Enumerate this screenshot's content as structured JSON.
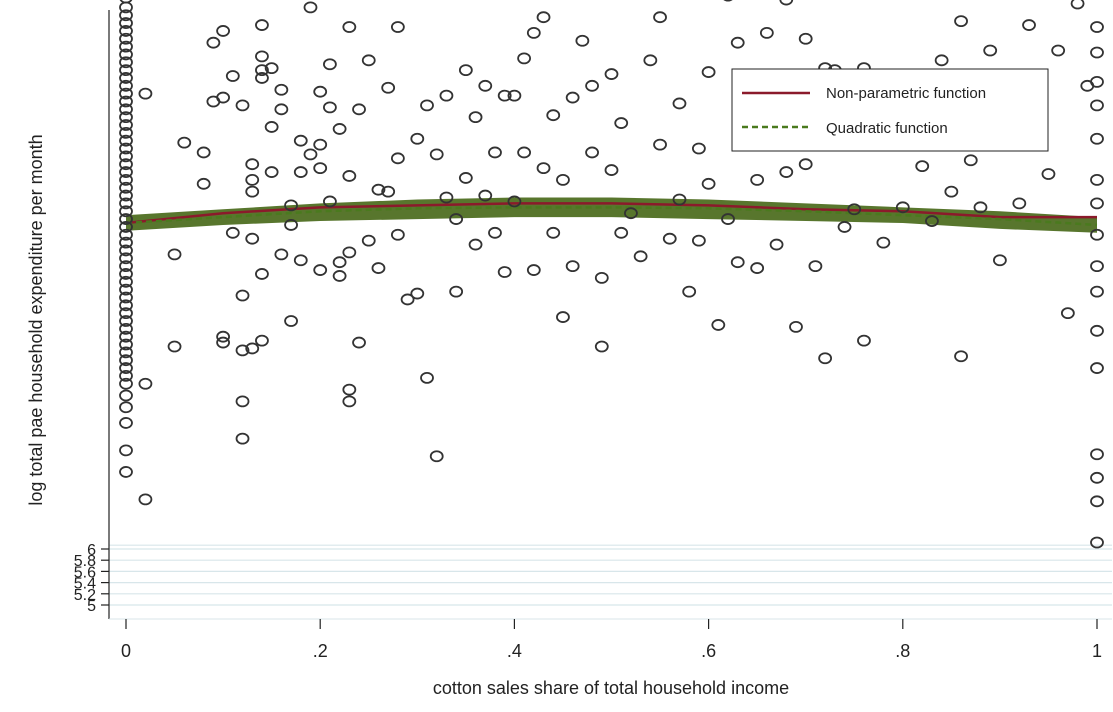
{
  "chart_data": {
    "type": "scatter",
    "xlabel": "cotton sales share of total household income",
    "ylabel": "log total pae household expenditure per month",
    "xlim": [
      0,
      1
    ],
    "x_ticks": [
      {
        "value": 0,
        "label": "0"
      },
      {
        "value": 0.2,
        "label": ".2"
      },
      {
        "value": 0.4,
        "label": ".4"
      },
      {
        "value": 0.6,
        "label": ".6"
      },
      {
        "value": 0.8,
        "label": ".8"
      },
      {
        "value": 1,
        "label": "1"
      }
    ],
    "y_ticks": [
      {
        "value": 5,
        "label": "5"
      },
      {
        "value": 5.2,
        "label": "5.2"
      },
      {
        "value": 5.4,
        "label": "5.4"
      },
      {
        "value": 5.6,
        "label": "5.6"
      },
      {
        "value": 5.8,
        "label": "5.8"
      },
      {
        "value": 6,
        "label": "6"
      }
    ],
    "grid": true,
    "legend_position": "top-right",
    "colors": {
      "points": "#333333",
      "nonparametric": "#8b1a2b",
      "quadratic": "#4a7a1e",
      "band": "#4f6f22",
      "grid": "#d8e6ea"
    },
    "series": [
      {
        "name": "Non-parametric function",
        "style": "line",
        "x": [
          0,
          0.1,
          0.2,
          0.3,
          0.4,
          0.5,
          0.6,
          0.7,
          0.8,
          0.9,
          1.0
        ],
        "y": [
          7.6,
          7.65,
          7.68,
          7.69,
          7.7,
          7.7,
          7.69,
          7.67,
          7.66,
          7.63,
          7.63
        ]
      },
      {
        "name": "Quadratic function",
        "style": "dashed",
        "x": [
          0,
          0.1,
          0.2,
          0.3,
          0.4,
          0.5,
          0.6,
          0.7,
          0.8,
          0.9,
          1.0
        ],
        "y": [
          7.6,
          7.63,
          7.66,
          7.675,
          7.68,
          7.68,
          7.675,
          7.66,
          7.64,
          7.62,
          7.59
        ]
      }
    ],
    "band": {
      "x": [
        0,
        0.1,
        0.2,
        0.3,
        0.4,
        0.5,
        0.6,
        0.7,
        0.8,
        0.9,
        1.0
      ],
      "lower": [
        7.56,
        7.59,
        7.61,
        7.62,
        7.63,
        7.63,
        7.62,
        7.61,
        7.6,
        7.57,
        7.55
      ],
      "upper": [
        7.64,
        7.67,
        7.7,
        7.72,
        7.73,
        7.73,
        7.72,
        7.7,
        7.68,
        7.66,
        7.63
      ]
    },
    "scatter_points": [
      [
        0,
        9.0
      ],
      [
        0,
        8.92
      ],
      [
        0,
        8.8
      ],
      [
        0,
        8.75
      ],
      [
        0,
        8.7
      ],
      [
        0,
        8.66
      ],
      [
        0,
        8.62
      ],
      [
        0,
        8.58
      ],
      [
        0,
        8.54
      ],
      [
        0,
        8.5
      ],
      [
        0,
        8.46
      ],
      [
        0,
        8.42
      ],
      [
        0,
        8.38
      ],
      [
        0,
        8.34
      ],
      [
        0,
        8.3
      ],
      [
        0,
        8.26
      ],
      [
        0,
        8.22
      ],
      [
        0,
        8.18
      ],
      [
        0,
        8.14
      ],
      [
        0,
        8.1
      ],
      [
        0,
        8.06
      ],
      [
        0,
        8.02
      ],
      [
        0,
        7.98
      ],
      [
        0,
        7.94
      ],
      [
        0,
        7.9
      ],
      [
        0,
        7.86
      ],
      [
        0,
        7.82
      ],
      [
        0,
        7.78
      ],
      [
        0,
        7.74
      ],
      [
        0,
        7.7
      ],
      [
        0,
        7.66
      ],
      [
        0,
        7.62
      ],
      [
        0,
        7.58
      ],
      [
        0,
        7.54
      ],
      [
        0,
        7.5
      ],
      [
        0,
        7.46
      ],
      [
        0,
        7.42
      ],
      [
        0,
        7.38
      ],
      [
        0,
        7.34
      ],
      [
        0,
        7.3
      ],
      [
        0,
        7.26
      ],
      [
        0,
        7.22
      ],
      [
        0,
        7.18
      ],
      [
        0,
        7.14
      ],
      [
        0,
        7.1
      ],
      [
        0,
        7.06
      ],
      [
        0,
        7.02
      ],
      [
        0,
        6.98
      ],
      [
        0,
        6.94
      ],
      [
        0,
        6.9
      ],
      [
        0,
        6.86
      ],
      [
        0,
        6.82
      ],
      [
        0,
        6.78
      ],
      [
        0,
        6.72
      ],
      [
        0,
        6.66
      ],
      [
        0,
        6.58
      ],
      [
        0,
        6.44
      ],
      [
        0,
        6.33
      ],
      [
        0.02,
        6.19
      ],
      [
        0.02,
        6.78
      ],
      [
        0.02,
        8.26
      ],
      [
        0.05,
        7.44
      ],
      [
        0.05,
        6.97
      ],
      [
        0.06,
        9.06
      ],
      [
        0.06,
        8.01
      ],
      [
        0.08,
        7.8
      ],
      [
        0.08,
        7.96
      ],
      [
        0.09,
        8.52
      ],
      [
        0.09,
        8.22
      ],
      [
        0.1,
        9.4
      ],
      [
        0.1,
        9.33
      ],
      [
        0.1,
        8.91
      ],
      [
        0.1,
        8.24
      ],
      [
        0.1,
        6.99
      ],
      [
        0.1,
        7.02
      ],
      [
        0.1,
        8.58
      ],
      [
        0.11,
        8.35
      ],
      [
        0.11,
        7.55
      ],
      [
        0.12,
        7.23
      ],
      [
        0.12,
        6.95
      ],
      [
        0.12,
        6.5
      ],
      [
        0.12,
        6.69
      ],
      [
        0.12,
        8.2
      ],
      [
        0.13,
        7.9
      ],
      [
        0.13,
        7.82
      ],
      [
        0.13,
        7.76
      ],
      [
        0.13,
        6.96
      ],
      [
        0.13,
        7.52
      ],
      [
        0.14,
        8.61
      ],
      [
        0.14,
        8.38
      ],
      [
        0.14,
        8.45
      ],
      [
        0.14,
        8.34
      ],
      [
        0.14,
        7.34
      ],
      [
        0.14,
        7.0
      ],
      [
        0.15,
        8.96
      ],
      [
        0.15,
        8.39
      ],
      [
        0.15,
        7.86
      ],
      [
        0.15,
        8.09
      ],
      [
        0.16,
        7.44
      ],
      [
        0.16,
        8.18
      ],
      [
        0.16,
        8.28
      ],
      [
        0.17,
        7.59
      ],
      [
        0.17,
        9.1
      ],
      [
        0.17,
        7.69
      ],
      [
        0.17,
        7.1
      ],
      [
        0.18,
        7.41
      ],
      [
        0.18,
        7.86
      ],
      [
        0.18,
        8.02
      ],
      [
        0.19,
        8.7
      ],
      [
        0.19,
        7.95
      ],
      [
        0.19,
        9.02
      ],
      [
        0.2,
        9.43
      ],
      [
        0.2,
        8.27
      ],
      [
        0.2,
        8.0
      ],
      [
        0.2,
        7.36
      ],
      [
        0.2,
        7.88
      ],
      [
        0.21,
        8.19
      ],
      [
        0.21,
        8.41
      ],
      [
        0.21,
        7.71
      ],
      [
        0.22,
        7.33
      ],
      [
        0.22,
        7.4
      ],
      [
        0.22,
        8.08
      ],
      [
        0.22,
        8.81
      ],
      [
        0.23,
        8.6
      ],
      [
        0.23,
        9.15
      ],
      [
        0.23,
        6.75
      ],
      [
        0.23,
        6.69
      ],
      [
        0.23,
        7.84
      ],
      [
        0.23,
        7.45
      ],
      [
        0.24,
        8.18
      ],
      [
        0.24,
        6.99
      ],
      [
        0.25,
        7.51
      ],
      [
        0.25,
        8.43
      ],
      [
        0.26,
        7.77
      ],
      [
        0.26,
        7.37
      ],
      [
        0.27,
        7.76
      ],
      [
        0.27,
        8.29
      ],
      [
        0.28,
        8.6
      ],
      [
        0.28,
        7.93
      ],
      [
        0.28,
        7.54
      ],
      [
        0.29,
        7.21
      ],
      [
        0.3,
        7.24
      ],
      [
        0.3,
        8.03
      ],
      [
        0.31,
        6.81
      ],
      [
        0.31,
        8.2
      ],
      [
        0.32,
        7.95
      ],
      [
        0.32,
        6.41
      ],
      [
        0.33,
        8.25
      ],
      [
        0.33,
        7.73
      ],
      [
        0.34,
        7.25
      ],
      [
        0.34,
        7.62
      ],
      [
        0.35,
        8.38
      ],
      [
        0.35,
        7.83
      ],
      [
        0.36,
        8.14
      ],
      [
        0.36,
        7.49
      ],
      [
        0.37,
        8.3
      ],
      [
        0.37,
        7.74
      ],
      [
        0.38,
        7.96
      ],
      [
        0.38,
        7.55
      ],
      [
        0.39,
        8.25
      ],
      [
        0.39,
        7.35
      ],
      [
        0.4,
        8.25
      ],
      [
        0.4,
        7.71
      ],
      [
        0.41,
        8.44
      ],
      [
        0.41,
        7.96
      ],
      [
        0.42,
        8.57
      ],
      [
        0.42,
        7.36
      ],
      [
        0.43,
        8.65
      ],
      [
        0.43,
        7.88
      ],
      [
        0.44,
        8.78
      ],
      [
        0.44,
        8.15
      ],
      [
        0.44,
        7.55
      ],
      [
        0.45,
        7.82
      ],
      [
        0.45,
        7.12
      ],
      [
        0.46,
        8.24
      ],
      [
        0.46,
        7.38
      ],
      [
        0.47,
        8.53
      ],
      [
        0.47,
        9.0
      ],
      [
        0.48,
        8.3
      ],
      [
        0.48,
        7.96
      ],
      [
        0.49,
        7.32
      ],
      [
        0.49,
        6.97
      ],
      [
        0.5,
        8.36
      ],
      [
        0.5,
        7.87
      ],
      [
        0.51,
        8.11
      ],
      [
        0.51,
        7.55
      ],
      [
        0.52,
        8.88
      ],
      [
        0.52,
        7.65
      ],
      [
        0.53,
        7.43
      ],
      [
        0.54,
        8.43
      ],
      [
        0.55,
        8.65
      ],
      [
        0.55,
        8.0
      ],
      [
        0.56,
        7.52
      ],
      [
        0.57,
        8.21
      ],
      [
        0.57,
        7.72
      ],
      [
        0.58,
        7.25
      ],
      [
        0.59,
        7.98
      ],
      [
        0.59,
        7.51
      ],
      [
        0.6,
        8.37
      ],
      [
        0.6,
        7.8
      ],
      [
        0.61,
        8.87
      ],
      [
        0.61,
        7.08
      ],
      [
        0.62,
        8.76
      ],
      [
        0.62,
        7.62
      ],
      [
        0.63,
        8.52
      ],
      [
        0.63,
        7.4
      ],
      [
        0.64,
        8.06
      ],
      [
        0.65,
        7.82
      ],
      [
        0.65,
        7.37
      ],
      [
        0.66,
        8.57
      ],
      [
        0.66,
        8.06
      ],
      [
        0.67,
        7.49
      ],
      [
        0.68,
        8.74
      ],
      [
        0.68,
        7.86
      ],
      [
        0.69,
        7.07
      ],
      [
        0.7,
        8.54
      ],
      [
        0.7,
        7.9
      ],
      [
        0.71,
        7.38
      ],
      [
        0.72,
        8.39
      ],
      [
        0.72,
        6.91
      ],
      [
        0.73,
        8.38
      ],
      [
        0.74,
        7.58
      ],
      [
        0.75,
        8.2
      ],
      [
        0.75,
        7.67
      ],
      [
        0.76,
        8.39
      ],
      [
        0.76,
        7.0
      ],
      [
        0.77,
        8.05
      ],
      [
        0.78,
        7.5
      ],
      [
        0.79,
        9.06
      ],
      [
        0.79,
        8.3
      ],
      [
        0.8,
        7.68
      ],
      [
        0.81,
        8.03
      ],
      [
        0.82,
        7.89
      ],
      [
        0.83,
        7.61
      ],
      [
        0.84,
        8.43
      ],
      [
        0.85,
        7.76
      ],
      [
        0.86,
        8.63
      ],
      [
        0.86,
        6.92
      ],
      [
        0.87,
        7.92
      ],
      [
        0.88,
        7.68
      ],
      [
        0.89,
        8.48
      ],
      [
        0.9,
        8.35
      ],
      [
        0.9,
        7.41
      ],
      [
        0.91,
        8.18
      ],
      [
        0.92,
        7.7
      ],
      [
        0.93,
        9.26
      ],
      [
        0.93,
        8.61
      ],
      [
        0.94,
        8.96
      ],
      [
        0.95,
        7.85
      ],
      [
        0.96,
        8.48
      ],
      [
        0.97,
        7.14
      ],
      [
        0.98,
        8.72
      ],
      [
        0.99,
        8.3
      ],
      [
        1.0,
        9.02
      ],
      [
        1.0,
        8.93
      ],
      [
        1.0,
        8.8
      ],
      [
        1.0,
        8.6
      ],
      [
        1.0,
        8.47
      ],
      [
        1.0,
        8.32
      ],
      [
        1.0,
        8.2
      ],
      [
        1.0,
        8.03
      ],
      [
        1.0,
        7.82
      ],
      [
        1.0,
        7.7
      ],
      [
        1.0,
        7.54
      ],
      [
        1.0,
        7.38
      ],
      [
        1.0,
        7.25
      ],
      [
        1.0,
        7.05
      ],
      [
        1.0,
        6.86
      ],
      [
        1.0,
        6.42
      ],
      [
        1.0,
        6.3
      ],
      [
        1.0,
        6.18
      ],
      [
        1.0,
        5.97
      ]
    ]
  }
}
